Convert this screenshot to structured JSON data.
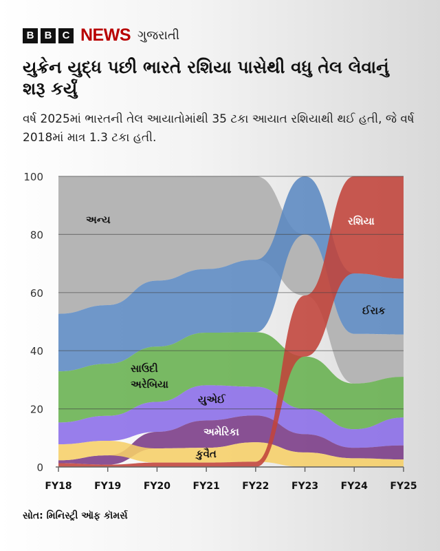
{
  "header": {
    "logo_letters": [
      "B",
      "B",
      "C"
    ],
    "news": "NEWS",
    "language": "ગુજરાતી"
  },
  "title": "યુક્રેન યુદ્ધ પછી ભારતે રશિયા  પાસેથી વધુ તેલ લેવાનું શરૂ કર્યું",
  "subtitle": "વર્ષ 2025માં ભારતની તેલ આયાતોમાંથી 35 ટકા આયાત રશિયાથી થઈ હતી, જે વર્ષ 2018માં માત્ર 1.3 ટકા હતી.",
  "source": "સોત: મિનિસ્ટ્રી ઑફ કૉમર્સ",
  "chart_data": {
    "type": "area",
    "subtype": "ranked stacked ribbon (share of India's crude oil imports, %)",
    "categories": [
      "FY18",
      "FY19",
      "FY20",
      "FY21",
      "FY22",
      "FY23",
      "FY24",
      "FY25"
    ],
    "ylim": [
      0,
      100
    ],
    "yticks": [
      "0",
      "20",
      "40",
      "60",
      "80",
      "100"
    ],
    "grid": true,
    "series": [
      {
        "key": "others",
        "name": "અન્ય",
        "color": "#b5b5b5",
        "label_color": "#111",
        "values": [
          47.3,
          44.3,
          35.9,
          31.9,
          28.7,
          21.0,
          17.1,
          14.6
        ]
      },
      {
        "key": "iraq",
        "name": "ઈરાક",
        "color": "#5b89c2",
        "label_color": "#111",
        "values": [
          19.8,
          20.2,
          22.7,
          21.9,
          24.9,
          20.0,
          20.8,
          19.2
        ]
      },
      {
        "key": "saudi",
        "name": "સાઉદી અરેબિયા",
        "name_lines": [
          "સાઉદી",
          "અરેબિયા"
        ],
        "color": "#67b04f",
        "label_color": "#111",
        "values": [
          17.6,
          17.9,
          19.0,
          18.1,
          18.8,
          18.0,
          15.7,
          14.0
        ]
      },
      {
        "key": "uae",
        "name": "યુએઈ",
        "color": "#8a6ce8",
        "label_color": "#111",
        "values": [
          7.5,
          8.6,
          10.3,
          12.1,
          9.9,
          8.7,
          6.4,
          9.6
        ]
      },
      {
        "key": "usa",
        "name": "અમેરિકા",
        "color": "#7a3a86",
        "label_color": "#ffffff",
        "values": [
          1.0,
          3.2,
          5.7,
          9.4,
          9.2,
          6.3,
          3.6,
          4.8
        ]
      },
      {
        "key": "kuwait",
        "name": "કુવૈત",
        "color": "#f6cf68",
        "label_color": "#111",
        "values": [
          5.5,
          5.0,
          4.9,
          5.1,
          6.7,
          5.0,
          3.0,
          2.6
        ]
      },
      {
        "key": "russia",
        "name": "રશિયા",
        "color": "#c2433a",
        "label_color": "#ffffff",
        "values": [
          1.3,
          0.8,
          1.5,
          1.5,
          1.8,
          21.0,
          33.4,
          35.2
        ]
      }
    ],
    "stack_order_bottom_to_top": [
      [
        "russia",
        "usa",
        "kuwait",
        "uae",
        "saudi",
        "iraq",
        "others"
      ],
      [
        "russia",
        "usa",
        "kuwait",
        "uae",
        "saudi",
        "iraq",
        "others"
      ],
      [
        "russia",
        "kuwait",
        "usa",
        "uae",
        "saudi",
        "iraq",
        "others"
      ],
      [
        "russia",
        "kuwait",
        "usa",
        "uae",
        "saudi",
        "iraq",
        "others"
      ],
      [
        "russia",
        "kuwait",
        "usa",
        "uae",
        "saudi",
        "iraq",
        "others"
      ],
      [
        "kuwait",
        "usa",
        "uae",
        "saudi",
        "russia",
        "others",
        "iraq"
      ],
      [
        "kuwait",
        "usa",
        "uae",
        "saudi",
        "others",
        "iraq",
        "russia"
      ],
      [
        "kuwait",
        "usa",
        "uae",
        "saudi",
        "others",
        "iraq",
        "russia"
      ]
    ]
  }
}
